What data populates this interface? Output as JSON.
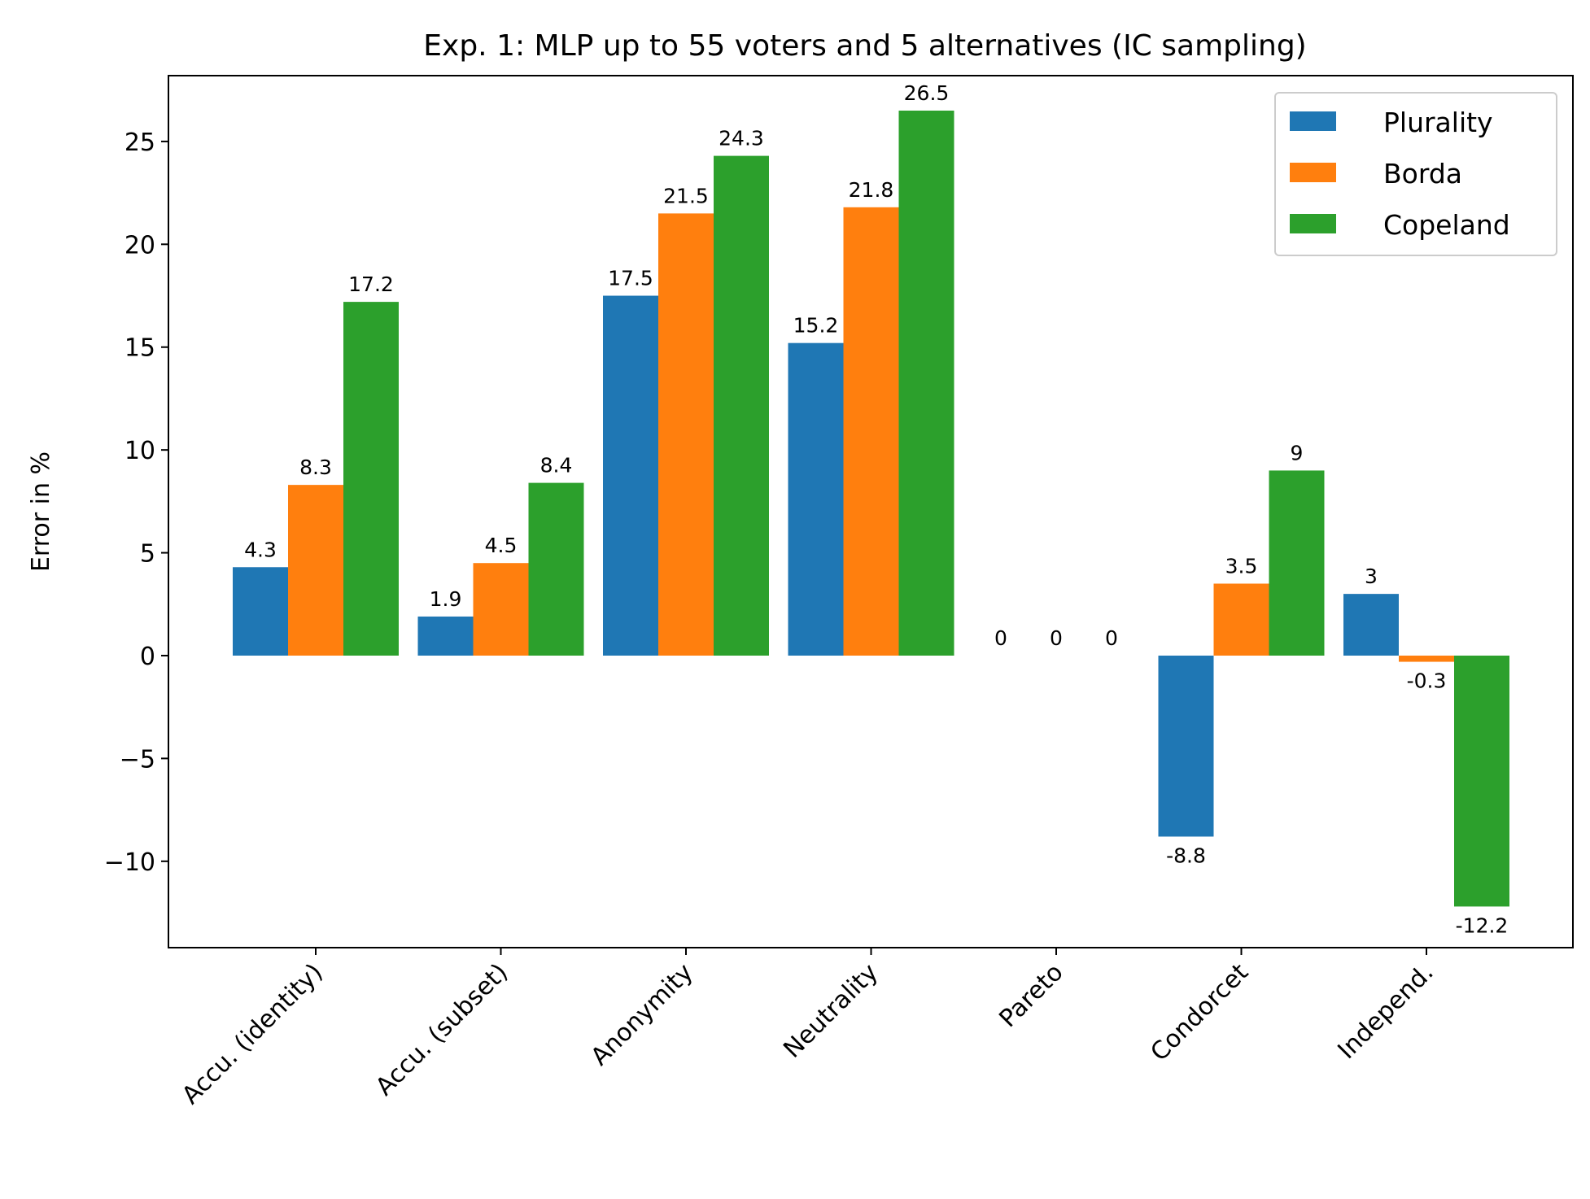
{
  "chart_data": {
    "type": "bar",
    "title": "Exp. 1: MLP up to 55 voters and 5 alternatives (IC sampling)",
    "xlabel": "",
    "ylabel": "Error in %",
    "ylim": [
      -14.2,
      28.2
    ],
    "yticks": [
      -10,
      -5,
      0,
      5,
      10,
      15,
      20,
      25
    ],
    "categories": [
      "Accu. (identity)",
      "Accu. (subset)",
      "Anonymity",
      "Neutrality",
      "Pareto",
      "Condorcet",
      "Independ."
    ],
    "series": [
      {
        "name": "Plurality",
        "color": "#1f77b4",
        "values": [
          4.3,
          1.9,
          17.5,
          15.2,
          0,
          -8.8,
          3
        ],
        "labels": [
          "4.3",
          "1.9",
          "17.5",
          "15.2",
          "0",
          "-8.8",
          "3"
        ]
      },
      {
        "name": "Borda",
        "color": "#ff7f0e",
        "values": [
          8.3,
          4.5,
          21.5,
          21.8,
          0,
          3.5,
          -0.3
        ],
        "labels": [
          "8.3",
          "4.5",
          "21.5",
          "21.8",
          "0",
          "3.5",
          "-0.3"
        ]
      },
      {
        "name": "Copeland",
        "color": "#2ca02c",
        "values": [
          17.2,
          8.4,
          24.3,
          26.5,
          0,
          9,
          -12.2
        ],
        "labels": [
          "17.2",
          "8.4",
          "24.3",
          "26.5",
          "0",
          "9",
          "-12.2"
        ]
      }
    ],
    "legend_position": "top-right",
    "grid": false
  }
}
